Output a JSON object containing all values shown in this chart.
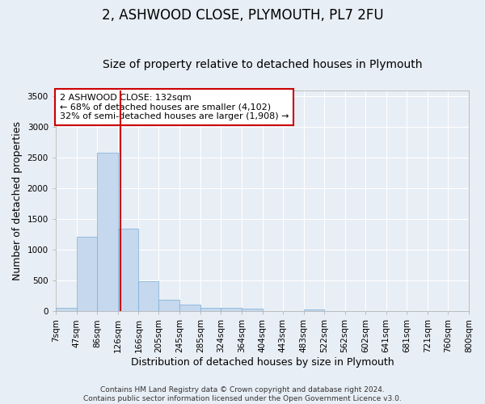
{
  "title": "2, ASHWOOD CLOSE, PLYMOUTH, PL7 2FU",
  "subtitle": "Size of property relative to detached houses in Plymouth",
  "xlabel": "Distribution of detached houses by size in Plymouth",
  "ylabel": "Number of detached properties",
  "bin_edges": [
    7,
    47,
    86,
    126,
    166,
    205,
    245,
    285,
    324,
    364,
    404,
    443,
    483,
    522,
    562,
    602,
    641,
    681,
    721,
    760,
    800
  ],
  "bar_heights": [
    50,
    1220,
    2580,
    1340,
    490,
    190,
    105,
    50,
    50,
    40,
    0,
    0,
    35,
    0,
    0,
    0,
    0,
    0,
    0,
    0
  ],
  "bar_color": "#c5d8ee",
  "bar_edge_color": "#7aadd4",
  "red_line_x": 132,
  "annotation_line1": "2 ASHWOOD CLOSE: 132sqm",
  "annotation_line2": "← 68% of detached houses are smaller (4,102)",
  "annotation_line3": "32% of semi-detached houses are larger (1,908) →",
  "annotation_box_color": "#cc0000",
  "annotation_box_fill": "#ffffff",
  "ylim": [
    0,
    3600
  ],
  "yticks": [
    0,
    500,
    1000,
    1500,
    2000,
    2500,
    3000,
    3500
  ],
  "background_color": "#e8eef5",
  "grid_color": "#ffffff",
  "footer_line1": "Contains HM Land Registry data © Crown copyright and database right 2024.",
  "footer_line2": "Contains public sector information licensed under the Open Government Licence v3.0.",
  "title_fontsize": 12,
  "subtitle_fontsize": 10,
  "xlabel_fontsize": 9,
  "ylabel_fontsize": 9,
  "tick_fontsize": 7.5,
  "annotation_fontsize": 8,
  "footer_fontsize": 6.5
}
